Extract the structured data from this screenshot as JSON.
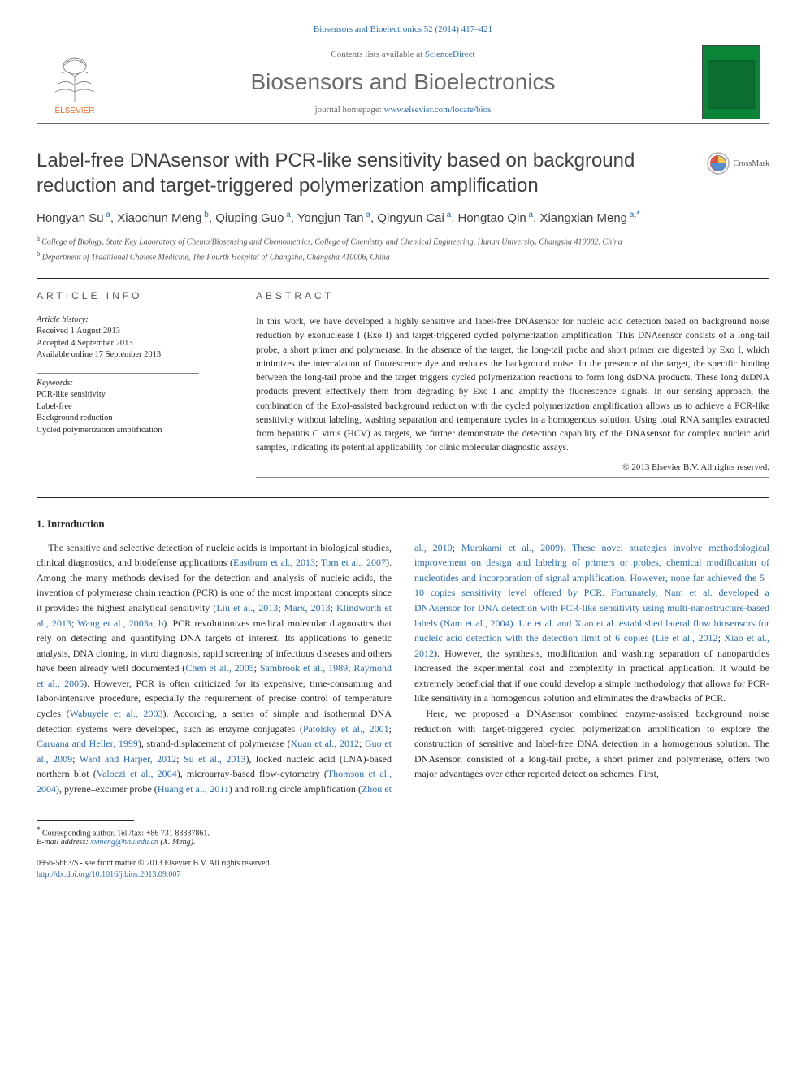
{
  "top_link": "Biosensors and Bioelectronics 52 (2014) 417–421",
  "header": {
    "contents_line": "Contents lists available at ",
    "contents_link": "ScienceDirect",
    "journal_name": "Biosensors and Bioelectronics",
    "homepage_label": "journal homepage: ",
    "homepage_url": "www.elsevier.com/locate/bios",
    "elsevier_label": "ELSEVIER",
    "cover_colors": {
      "bg": "#0a8538",
      "inner": "#0b6e30"
    }
  },
  "crossmark_label": "CrossMark",
  "title": "Label-free DNAsensor with PCR-like sensitivity based on background reduction and target-triggered polymerization amplification",
  "authors": [
    {
      "name": "Hongyan Su",
      "aff": "a"
    },
    {
      "name": "Xiaochun Meng",
      "aff": "b"
    },
    {
      "name": "Qiuping Guo",
      "aff": "a"
    },
    {
      "name": "Yongjun Tan",
      "aff": "a"
    },
    {
      "name": "Qingyun Cai",
      "aff": "a"
    },
    {
      "name": "Hongtao Qin",
      "aff": "a"
    },
    {
      "name": "Xiangxian Meng",
      "aff": "a",
      "corr": true
    }
  ],
  "affiliations": [
    {
      "sup": "a",
      "text": "College of Biology, State Key Laboratory of Chemo/Biosensing and Chemometrics, College of Chemistry and Chemical Engineering, Hunan University, Changsha 410082, China"
    },
    {
      "sup": "b",
      "text": "Department of Traditional Chinese Medicine, The Fourth Hospital of Changsha, Changsha 410006, China"
    }
  ],
  "article_info": {
    "heading": "ARTICLE INFO",
    "history_label": "Article history:",
    "received": "Received 1 August 2013",
    "accepted": "Accepted 4 September 2013",
    "online": "Available online 17 September 2013",
    "keywords_label": "Keywords:",
    "keywords": [
      "PCR-like sensitivity",
      "Label-free",
      "Background reduction",
      "Cycled polymerization amplification"
    ]
  },
  "abstract": {
    "heading": "ABSTRACT",
    "text": "In this work, we have developed a highly sensitive and label-free DNAsensor for nucleic acid detection based on background noise reduction by exonuclease I (Exo I) and target-triggered cycled polymerization amplification. This DNAsensor consists of a long-tail probe, a short primer and polymerase. In the absence of the target, the long-tail probe and short primer are digested by Exo I, which minimizes the intercalation of fluorescence dye and reduces the background noise. In the presence of the target, the specific binding between the long-tail probe and the target triggers cycled polymerization reactions to form long dsDNA products. These long dsDNA products prevent effectively them from degrading by Exo I and amplify the fluorescence signals. In our sensing approach, the combination of the ExoI-assisted background reduction with the cycled polymerization amplification allows us to achieve a PCR-like sensitivity without labeling, washing separation and temperature cycles in a homogenous solution. Using total RNA samples extracted from hepatitis C virus (HCV) as targets, we further demonstrate the detection capability of the DNAsensor for complex nucleic acid samples, indicating its potential applicability for clinic molecular diagnostic assays.",
    "copyright": "© 2013 Elsevier B.V. All rights reserved."
  },
  "intro": {
    "heading": "1.  Introduction",
    "para1_parts": [
      "The sensitive and selective detection of nucleic acids is important in biological studies, clinical diagnostics, and biodefense applications (",
      "Eastburn et al., 2013",
      "; ",
      "Tom et al., 2007",
      "). Among the many methods devised for the detection and analysis of nucleic acids, the invention of polymerase chain reaction (PCR) is one of the most important concepts since it provides the highest analytical sensitivity (",
      "Liu et al., 2013",
      "; ",
      "Marx, 2013",
      "; ",
      "Klindworth et al., 2013",
      "; ",
      "Wang et al., 2003a",
      ", ",
      "b",
      "). PCR revolutionizes medical molecular diagnostics that rely on detecting and quantifying DNA targets of interest. Its applications to genetic analysis, DNA cloning, in vitro diagnosis, rapid screening of infectious diseases and others have been already well documented (",
      "Chen et al., 2005",
      "; ",
      "Sambrook et al., 1989",
      "; ",
      "Raymond et al., 2005",
      "). However, PCR is often criticized for its expensive, time-consuming and labor-intensive procedure, especially the requirement of precise control of temperature cycles (",
      "Wabuyele et al., 2003",
      "). According, a series of simple and isothermal DNA detection systems were developed, such as enzyme conjugates (",
      "Patolsky et al., 2001",
      "; ",
      "Caruana and Heller, 1999",
      "), strand-displacement of polymerase (",
      "Xuan et al., 2012",
      "; ",
      "Guo et al., 2009",
      "; ",
      "Ward"
    ],
    "para1_col2_parts": [
      "and Harper, 2012",
      "; ",
      "Su et al., 2013",
      "), locked nucleic acid (LNA)-based northern blot (",
      "Valoczi et al., 2004",
      "), microarray-based flow-cytometry (",
      "Thomson et al., 2004",
      "), pyrene–excimer probe (",
      "Huang et al., 2011",
      ") and rolling circle amplification (",
      "Zhou et al., 2010",
      "; ",
      "Murakami et al., 2009",
      "). These novel strategies involve methodological improvement on design and labeling of primers or probes, chemical modification of nucleotides and incorporation of signal amplification. However, none far achieved the 5–10 copies sensitivity level offered by PCR. Fortunately, Nam et al. developed a DNAsensor for DNA detection with PCR-like sensitivity using multi-nanostructure-based labels (",
      "Nam et al., 2004",
      "). Lie et al. and Xiao et al. established lateral flow biosensors for nucleic acid detection with the detection limit of 6 copies (",
      "Lie et al., 2012",
      "; ",
      "Xiao et al., 2012",
      "). However, the synthesis, modification and washing separation of nanoparticles increased the experimental cost and complexity in practical application. It would be extremely beneficial that if one could develop a simple methodology that allows for PCR-like sensitivity in a homogenous solution and eliminates the drawbacks of PCR."
    ],
    "para2": "Here, we proposed a DNAsensor combined enzyme-assisted background noise reduction with target-triggered cycled polymerization amplification to explore the construction of sensitive and label-free DNA detection in a homogenous solution. The DNAsensor, consisted of a long-tail probe, a short primer and polymerase, offers two major advantages over other reported detection schemes. First,"
  },
  "footer": {
    "corr_label": "Corresponding author. Tel./fax: +86 731 88887861.",
    "email_label": "E-mail address: ",
    "email": "xxmeng@hnu.edu.cn",
    "email_name": " (X. Meng).",
    "issn_line": "0956-5663/$ - see front matter © 2013 Elsevier B.V. All rights reserved.",
    "doi": "http://dx.doi.org/10.1016/j.bios.2013.09.007"
  },
  "colors": {
    "link": "#2b6cb0",
    "text": "#2a2a2a",
    "muted": "#6a6a6a",
    "elsevier_orange": "#ed6c1f"
  }
}
